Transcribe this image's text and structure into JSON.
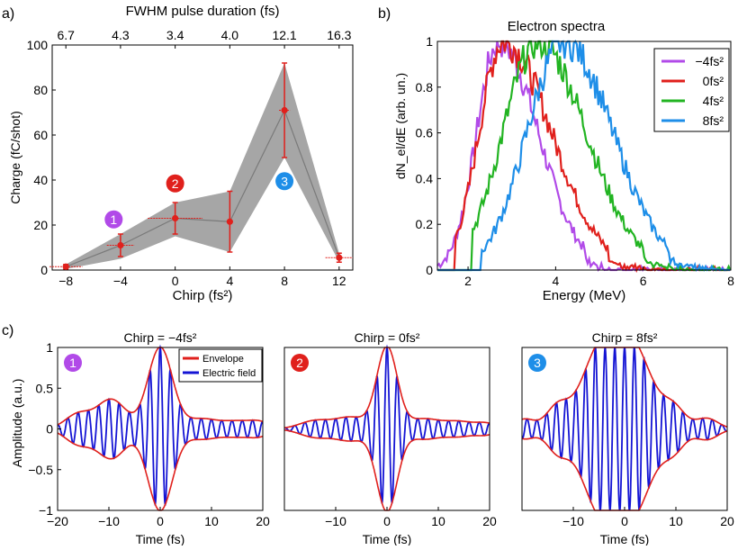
{
  "panel_labels": {
    "a": "a)",
    "b": "b)",
    "c": "c)"
  },
  "colors": {
    "purple": "#b14ae8",
    "red": "#e0201c",
    "green": "#22b422",
    "blue": "#1e8ee8",
    "darkblue": "#1414d4",
    "gray": "#a6a6a6"
  },
  "chart_data": [
    {
      "id": "a",
      "type": "line",
      "title": "",
      "top_axis_label": "FWHM pulse duration (fs)",
      "top_tick_labels": [
        "6.7",
        "4.3",
        "3.4",
        "4.0",
        "12.1",
        "16.3"
      ],
      "xlabel": "Chirp (fs²)",
      "ylabel": "Charge (fC/shot)",
      "xlim": [
        -9,
        13
      ],
      "ylim": [
        0,
        100
      ],
      "xticks": [
        -8,
        -4,
        0,
        4,
        8,
        12
      ],
      "yticks": [
        0,
        20,
        40,
        60,
        80,
        100
      ],
      "series": [
        {
          "name": "Charge",
          "x": [
            -8,
            -4,
            0,
            4,
            8,
            12
          ],
          "y": [
            1.5,
            11,
            23,
            21.5,
            71,
            5.5
          ],
          "yerr": [
            1,
            5,
            7,
            13.5,
            21,
            2
          ],
          "xerr": [
            1.2,
            1.0,
            2.0,
            0.2,
            0.4,
            1.0
          ],
          "band_low": [
            0.5,
            5,
            15,
            8,
            50,
            3.5
          ],
          "band_high": [
            2.5,
            16,
            30,
            35,
            92,
            7.5
          ]
        }
      ],
      "markers": [
        {
          "label": "1",
          "x": -4.5,
          "y": 22.5,
          "color": "#b14ae8"
        },
        {
          "label": "2",
          "x": 0,
          "y": 38.5,
          "color": "#e0201c"
        },
        {
          "label": "3",
          "x": 8,
          "y": 39.5,
          "color": "#1e8ee8"
        }
      ]
    },
    {
      "id": "b",
      "type": "line",
      "title": "Electron spectra",
      "xlabel": "Energy (MeV)",
      "ylabel": "dN_el/dE (arb. un.)",
      "xlim": [
        1.3,
        8
      ],
      "ylim": [
        0,
        1
      ],
      "xticks": [
        2,
        4,
        6,
        8
      ],
      "yticks": [
        0,
        0.2,
        0.4,
        0.6,
        0.8,
        1
      ],
      "legend_position": "top-right",
      "series": [
        {
          "name": "−4fs²",
          "color": "#b14ae8",
          "peak": 2.7,
          "sigma_left": 0.5,
          "sigma_right": 0.9,
          "onset": 1.3
        },
        {
          "name": "0fs²",
          "color": "#e0201c",
          "peak": 2.8,
          "sigma_left": 0.55,
          "sigma_right": 1.1,
          "onset": 1.7
        },
        {
          "name": "4fs²",
          "color": "#22b422",
          "peak": 3.6,
          "sigma_left": 0.8,
          "sigma_right": 1.1,
          "onset": 2.1
        },
        {
          "name": "8fs²",
          "color": "#1e8ee8",
          "peak": 4.2,
          "sigma_left": 0.85,
          "sigma_right": 1.1,
          "onset": 2.3
        }
      ]
    },
    {
      "id": "c1",
      "type": "line",
      "title": "Chirp = −4fs²",
      "badge": "1",
      "badge_color": "#b14ae8",
      "xlabel": "Time (fs)",
      "ylabel": "Amplitude (a.u.)",
      "xlim": [
        -20,
        20
      ],
      "ylim": [
        -1,
        1
      ],
      "xticks": [
        -20,
        -10,
        0,
        10,
        20
      ],
      "yticks": [
        -1,
        -0.5,
        0,
        0.5,
        1
      ],
      "legend": [
        "Envelope",
        "Electric field"
      ],
      "legend_colors": [
        "#e0201c",
        "#1414d4"
      ],
      "envelope_components": [
        [
          1.0,
          0,
          2.4
        ],
        [
          0.36,
          -9.5,
          2.8
        ],
        [
          0.18,
          -16,
          2.5
        ],
        [
          0.12,
          8,
          3
        ],
        [
          0.09,
          15,
          3
        ],
        [
          0.07,
          19.5,
          2
        ]
      ],
      "carrier_period": 2.0
    },
    {
      "id": "c2",
      "type": "line",
      "title": "Chirp = 0fs²",
      "badge": "2",
      "badge_color": "#e0201c",
      "xlabel": "Time (fs)",
      "xlim": [
        -20,
        20
      ],
      "ylim": [
        -1,
        1
      ],
      "xticks": [
        -10,
        0,
        10,
        20
      ],
      "envelope_components": [
        [
          1.0,
          0,
          2.0
        ],
        [
          0.14,
          -7,
          3
        ],
        [
          0.12,
          7,
          3
        ],
        [
          0.1,
          -14,
          3
        ],
        [
          0.09,
          14,
          3
        ],
        [
          0.06,
          19.5,
          2
        ]
      ],
      "carrier_period": 2.0
    },
    {
      "id": "c3",
      "type": "line",
      "title": "Chirp = 8fs²",
      "badge": "3",
      "badge_color": "#1e8ee8",
      "xlabel": "Time (fs)",
      "xlim": [
        -20,
        20
      ],
      "ylim": [
        -1,
        1
      ],
      "xticks": [
        -10,
        0,
        10,
        20
      ],
      "envelope_components": [
        [
          0.85,
          -5.5,
          3.2
        ],
        [
          0.85,
          2.5,
          3.2
        ],
        [
          0.55,
          -1.5,
          2.5
        ],
        [
          0.28,
          -13,
          2.2
        ],
        [
          0.26,
          9.5,
          2.2
        ],
        [
          0.13,
          16,
          2.2
        ],
        [
          0.12,
          -19.5,
          2
        ]
      ],
      "carrier_period": 1.9
    }
  ]
}
